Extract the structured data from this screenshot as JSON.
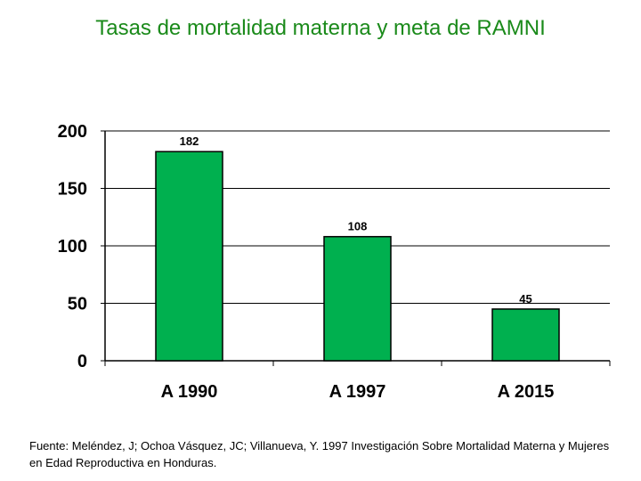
{
  "title": "Tasas de mortalidad materna y meta de RAMNI",
  "source": "Fuente: Meléndez, J; Ochoa Vásquez, JC; Villanueva, Y. 1997 Investigación Sobre Mortalidad Materna y Mujeres en Edad Reproductiva en Honduras.",
  "colors": {
    "title": "#1a8a1a",
    "bar": "#00b04f",
    "bar_outline": "#000000",
    "grid": "#000000"
  },
  "chart_data": {
    "type": "bar",
    "title": "Tasas de mortalidad materna y meta de RAMNI",
    "categories": [
      "A 1990",
      "A 1997",
      "A 2015"
    ],
    "values": [
      182,
      108,
      45
    ],
    "data_labels": [
      "182",
      "108",
      "45"
    ],
    "y_ticks": [
      "0",
      "50",
      "100",
      "150",
      "200"
    ],
    "ylim": [
      0,
      200
    ],
    "xlabel": "",
    "ylabel": "",
    "grid": true,
    "legend": "none"
  }
}
